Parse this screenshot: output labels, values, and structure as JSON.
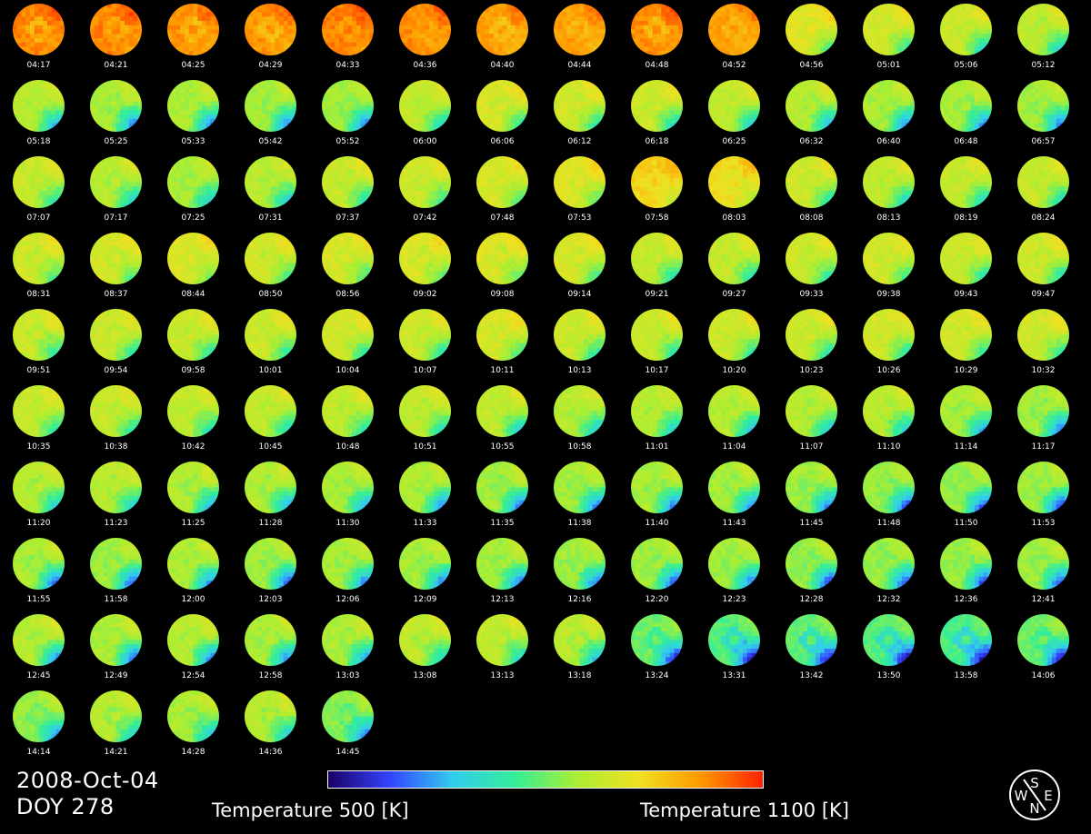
{
  "frames": [
    {
      "time": "04:17",
      "temp": 0.88,
      "cold": 0.05,
      "ring": 0.6
    },
    {
      "time": "04:21",
      "temp": 0.88,
      "cold": 0.05,
      "ring": 0.4
    },
    {
      "time": "04:25",
      "temp": 0.86,
      "cold": 0.05,
      "ring": 0.5
    },
    {
      "time": "04:29",
      "temp": 0.86,
      "cold": 0.05,
      "ring": 0.6
    },
    {
      "time": "04:33",
      "temp": 0.89,
      "cold": 0.05,
      "ring": 0.3
    },
    {
      "time": "04:36",
      "temp": 0.87,
      "cold": 0.05,
      "ring": 0.3
    },
    {
      "time": "04:40",
      "temp": 0.84,
      "cold": 0.05,
      "ring": 0.4
    },
    {
      "time": "04:44",
      "temp": 0.84,
      "cold": 0.05,
      "ring": 0.3
    },
    {
      "time": "04:48",
      "temp": 0.87,
      "cold": 0.05,
      "ring": 0.6
    },
    {
      "time": "04:52",
      "temp": 0.84,
      "cold": 0.05,
      "ring": 0.3
    },
    {
      "time": "04:56",
      "temp": 0.68,
      "cold": 0.25,
      "ring": 0.2
    },
    {
      "time": "05:01",
      "temp": 0.66,
      "cold": 0.3,
      "ring": 0.2
    },
    {
      "time": "05:06",
      "temp": 0.64,
      "cold": 0.35,
      "ring": 0.2
    },
    {
      "time": "05:12",
      "temp": 0.62,
      "cold": 0.35,
      "ring": 0.3
    },
    {
      "time": "05:18",
      "temp": 0.6,
      "cold": 0.4,
      "ring": 0.2
    },
    {
      "time": "05:25",
      "temp": 0.58,
      "cold": 0.45,
      "ring": 0.3
    },
    {
      "time": "05:33",
      "temp": 0.58,
      "cold": 0.45,
      "ring": 0.2
    },
    {
      "time": "05:42",
      "temp": 0.57,
      "cold": 0.45,
      "ring": 0.2
    },
    {
      "time": "05:52",
      "temp": 0.57,
      "cold": 0.45,
      "ring": 0.2
    },
    {
      "time": "06:00",
      "temp": 0.62,
      "cold": 0.35,
      "ring": 0.2
    },
    {
      "time": "06:06",
      "temp": 0.66,
      "cold": 0.3,
      "ring": 0.2
    },
    {
      "time": "06:12",
      "temp": 0.65,
      "cold": 0.3,
      "ring": 0.2
    },
    {
      "time": "06:18",
      "temp": 0.64,
      "cold": 0.35,
      "ring": 0.2
    },
    {
      "time": "06:25",
      "temp": 0.62,
      "cold": 0.35,
      "ring": 0.2
    },
    {
      "time": "06:32",
      "temp": 0.6,
      "cold": 0.4,
      "ring": 0.2
    },
    {
      "time": "06:40",
      "temp": 0.58,
      "cold": 0.45,
      "ring": 0.2
    },
    {
      "time": "06:48",
      "temp": 0.58,
      "cold": 0.45,
      "ring": 0.3
    },
    {
      "time": "06:57",
      "temp": 0.57,
      "cold": 0.45,
      "ring": 0.3
    },
    {
      "time": "07:07",
      "temp": 0.63,
      "cold": 0.3,
      "ring": 0.2
    },
    {
      "time": "07:17",
      "temp": 0.6,
      "cold": 0.35,
      "ring": 0.2
    },
    {
      "time": "07:25",
      "temp": 0.58,
      "cold": 0.35,
      "ring": 0.2
    },
    {
      "time": "07:31",
      "temp": 0.6,
      "cold": 0.35,
      "ring": 0.2
    },
    {
      "time": "07:37",
      "temp": 0.63,
      "cold": 0.3,
      "ring": 0.2
    },
    {
      "time": "07:42",
      "temp": 0.64,
      "cold": 0.25,
      "ring": 0.2
    },
    {
      "time": "07:48",
      "temp": 0.66,
      "cold": 0.25,
      "ring": 0.2
    },
    {
      "time": "07:53",
      "temp": 0.68,
      "cold": 0.25,
      "ring": 0.3
    },
    {
      "time": "07:58",
      "temp": 0.74,
      "cold": 0.15,
      "ring": 0.3
    },
    {
      "time": "08:03",
      "temp": 0.72,
      "cold": 0.15,
      "ring": 0.3
    },
    {
      "time": "08:08",
      "temp": 0.64,
      "cold": 0.3,
      "ring": 0.2
    },
    {
      "time": "08:13",
      "temp": 0.62,
      "cold": 0.35,
      "ring": 0.2
    },
    {
      "time": "08:19",
      "temp": 0.63,
      "cold": 0.35,
      "ring": 0.2
    },
    {
      "time": "08:24",
      "temp": 0.63,
      "cold": 0.3,
      "ring": 0.2
    },
    {
      "time": "08:31",
      "temp": 0.65,
      "cold": 0.25,
      "ring": 0.3
    },
    {
      "time": "08:37",
      "temp": 0.66,
      "cold": 0.25,
      "ring": 0.3
    },
    {
      "time": "08:44",
      "temp": 0.67,
      "cold": 0.2,
      "ring": 0.3
    },
    {
      "time": "08:50",
      "temp": 0.65,
      "cold": 0.25,
      "ring": 0.3
    },
    {
      "time": "08:56",
      "temp": 0.66,
      "cold": 0.25,
      "ring": 0.3
    },
    {
      "time": "09:02",
      "temp": 0.67,
      "cold": 0.25,
      "ring": 0.3
    },
    {
      "time": "09:08",
      "temp": 0.67,
      "cold": 0.25,
      "ring": 0.3
    },
    {
      "time": "09:14",
      "temp": 0.66,
      "cold": 0.25,
      "ring": 0.3
    },
    {
      "time": "09:21",
      "temp": 0.63,
      "cold": 0.3,
      "ring": 0.2
    },
    {
      "time": "09:27",
      "temp": 0.63,
      "cold": 0.3,
      "ring": 0.2
    },
    {
      "time": "09:33",
      "temp": 0.64,
      "cold": 0.3,
      "ring": 0.2
    },
    {
      "time": "09:38",
      "temp": 0.65,
      "cold": 0.25,
      "ring": 0.2
    },
    {
      "time": "09:43",
      "temp": 0.64,
      "cold": 0.3,
      "ring": 0.2
    },
    {
      "time": "09:47",
      "temp": 0.64,
      "cold": 0.3,
      "ring": 0.2
    },
    {
      "time": "09:51",
      "temp": 0.64,
      "cold": 0.3,
      "ring": 0.4
    },
    {
      "time": "09:54",
      "temp": 0.64,
      "cold": 0.3,
      "ring": 0.2
    },
    {
      "time": "09:58",
      "temp": 0.64,
      "cold": 0.3,
      "ring": 0.2
    },
    {
      "time": "10:01",
      "temp": 0.64,
      "cold": 0.3,
      "ring": 0.2
    },
    {
      "time": "10:04",
      "temp": 0.65,
      "cold": 0.3,
      "ring": 0.2
    },
    {
      "time": "10:07",
      "temp": 0.64,
      "cold": 0.3,
      "ring": 0.2
    },
    {
      "time": "10:11",
      "temp": 0.66,
      "cold": 0.25,
      "ring": 0.2
    },
    {
      "time": "10:13",
      "temp": 0.64,
      "cold": 0.3,
      "ring": 0.2
    },
    {
      "time": "10:17",
      "temp": 0.64,
      "cold": 0.3,
      "ring": 0.3
    },
    {
      "time": "10:20",
      "temp": 0.64,
      "cold": 0.3,
      "ring": 0.2
    },
    {
      "time": "10:23",
      "temp": 0.64,
      "cold": 0.3,
      "ring": 0.2
    },
    {
      "time": "10:26",
      "temp": 0.65,
      "cold": 0.3,
      "ring": 0.2
    },
    {
      "time": "10:29",
      "temp": 0.65,
      "cold": 0.3,
      "ring": 0.2
    },
    {
      "time": "10:32",
      "temp": 0.65,
      "cold": 0.3,
      "ring": 0.2
    },
    {
      "time": "10:35",
      "temp": 0.63,
      "cold": 0.3,
      "ring": 0.2
    },
    {
      "time": "10:38",
      "temp": 0.63,
      "cold": 0.3,
      "ring": 0.2
    },
    {
      "time": "10:42",
      "temp": 0.62,
      "cold": 0.3,
      "ring": 0.2
    },
    {
      "time": "10:45",
      "temp": 0.62,
      "cold": 0.3,
      "ring": 0.2
    },
    {
      "time": "10:48",
      "temp": 0.62,
      "cold": 0.3,
      "ring": 0.2
    },
    {
      "time": "10:51",
      "temp": 0.62,
      "cold": 0.3,
      "ring": 0.2
    },
    {
      "time": "10:55",
      "temp": 0.62,
      "cold": 0.35,
      "ring": 0.2
    },
    {
      "time": "10:58",
      "temp": 0.6,
      "cold": 0.35,
      "ring": 0.2
    },
    {
      "time": "11:01",
      "temp": 0.6,
      "cold": 0.35,
      "ring": 0.2
    },
    {
      "time": "11:04",
      "temp": 0.6,
      "cold": 0.4,
      "ring": 0.2
    },
    {
      "time": "11:07",
      "temp": 0.6,
      "cold": 0.35,
      "ring": 0.2
    },
    {
      "time": "11:10",
      "temp": 0.6,
      "cold": 0.35,
      "ring": 0.2
    },
    {
      "time": "11:14",
      "temp": 0.58,
      "cold": 0.4,
      "ring": 0.2
    },
    {
      "time": "11:17",
      "temp": 0.56,
      "cold": 0.45,
      "ring": 0.2
    },
    {
      "time": "11:20",
      "temp": 0.6,
      "cold": 0.35,
      "ring": 0.3
    },
    {
      "time": "11:23",
      "temp": 0.6,
      "cold": 0.35,
      "ring": 0.2
    },
    {
      "time": "11:25",
      "temp": 0.59,
      "cold": 0.4,
      "ring": 0.3
    },
    {
      "time": "11:28",
      "temp": 0.59,
      "cold": 0.4,
      "ring": 0.3
    },
    {
      "time": "11:30",
      "temp": 0.58,
      "cold": 0.4,
      "ring": 0.2
    },
    {
      "time": "11:33",
      "temp": 0.58,
      "cold": 0.45,
      "ring": 0.2
    },
    {
      "time": "11:35",
      "temp": 0.57,
      "cold": 0.45,
      "ring": 0.2
    },
    {
      "time": "11:38",
      "temp": 0.57,
      "cold": 0.45,
      "ring": 0.2
    },
    {
      "time": "11:40",
      "temp": 0.57,
      "cold": 0.45,
      "ring": 0.2
    },
    {
      "time": "11:43",
      "temp": 0.57,
      "cold": 0.45,
      "ring": 0.2
    },
    {
      "time": "11:45",
      "temp": 0.56,
      "cold": 0.45,
      "ring": 0.2
    },
    {
      "time": "11:48",
      "temp": 0.55,
      "cold": 0.5,
      "ring": 0.2
    },
    {
      "time": "11:50",
      "temp": 0.55,
      "cold": 0.5,
      "ring": 0.2
    },
    {
      "time": "11:53",
      "temp": 0.56,
      "cold": 0.5,
      "ring": 0.2
    },
    {
      "time": "11:55",
      "temp": 0.58,
      "cold": 0.5,
      "ring": 0.3
    },
    {
      "time": "11:58",
      "temp": 0.56,
      "cold": 0.5,
      "ring": 0.2
    },
    {
      "time": "12:00",
      "temp": 0.58,
      "cold": 0.45,
      "ring": 0.2
    },
    {
      "time": "12:03",
      "temp": 0.56,
      "cold": 0.5,
      "ring": 0.2
    },
    {
      "time": "12:06",
      "temp": 0.57,
      "cold": 0.45,
      "ring": 0.2
    },
    {
      "time": "12:09",
      "temp": 0.57,
      "cold": 0.45,
      "ring": 0.2
    },
    {
      "time": "12:13",
      "temp": 0.57,
      "cold": 0.45,
      "ring": 0.2
    },
    {
      "time": "12:16",
      "temp": 0.56,
      "cold": 0.45,
      "ring": 0.2
    },
    {
      "time": "12:20",
      "temp": 0.56,
      "cold": 0.5,
      "ring": 0.2
    },
    {
      "time": "12:23",
      "temp": 0.56,
      "cold": 0.45,
      "ring": 0.2
    },
    {
      "time": "12:28",
      "temp": 0.55,
      "cold": 0.5,
      "ring": 0.2
    },
    {
      "time": "12:32",
      "temp": 0.55,
      "cold": 0.5,
      "ring": 0.2
    },
    {
      "time": "12:36",
      "temp": 0.55,
      "cold": 0.5,
      "ring": 0.2
    },
    {
      "time": "12:41",
      "temp": 0.56,
      "cold": 0.5,
      "ring": 0.2
    },
    {
      "time": "12:45",
      "temp": 0.6,
      "cold": 0.45,
      "ring": 0.2
    },
    {
      "time": "12:49",
      "temp": 0.58,
      "cold": 0.5,
      "ring": 0.2
    },
    {
      "time": "12:54",
      "temp": 0.6,
      "cold": 0.5,
      "ring": 0.2
    },
    {
      "time": "12:58",
      "temp": 0.58,
      "cold": 0.45,
      "ring": 0.2
    },
    {
      "time": "13:03",
      "temp": 0.58,
      "cold": 0.4,
      "ring": 0.2
    },
    {
      "time": "13:08",
      "temp": 0.62,
      "cold": 0.35,
      "ring": 0.4
    },
    {
      "time": "13:13",
      "temp": 0.62,
      "cold": 0.35,
      "ring": 0.3
    },
    {
      "time": "13:18",
      "temp": 0.6,
      "cold": 0.4,
      "ring": 0.3
    },
    {
      "time": "13:24",
      "temp": 0.5,
      "cold": 0.5,
      "ring": 0.5
    },
    {
      "time": "13:31",
      "temp": 0.47,
      "cold": 0.5,
      "ring": 0.9
    },
    {
      "time": "13:42",
      "temp": 0.48,
      "cold": 0.5,
      "ring": 0.9
    },
    {
      "time": "13:50",
      "temp": 0.47,
      "cold": 0.5,
      "ring": 0.9
    },
    {
      "time": "13:58",
      "temp": 0.45,
      "cold": 0.5,
      "ring": 1.0
    },
    {
      "time": "14:06",
      "temp": 0.5,
      "cold": 0.5,
      "ring": 0.5
    },
    {
      "time": "14:14",
      "temp": 0.55,
      "cold": 0.4,
      "ring": 0.3
    },
    {
      "time": "14:21",
      "temp": 0.6,
      "cold": 0.35,
      "ring": 0.4
    },
    {
      "time": "14:28",
      "temp": 0.58,
      "cold": 0.35,
      "ring": 0.3
    },
    {
      "time": "14:36",
      "temp": 0.6,
      "cold": 0.35,
      "ring": 0.4
    },
    {
      "time": "14:45",
      "temp": 0.53,
      "cold": 0.4,
      "ring": 0.4
    }
  ],
  "date": "2008-Oct-04",
  "doy": "DOY 278",
  "colorbar": {
    "min_label": "Temperature 500 [K]",
    "max_label": "Temperature 1100 [K]",
    "min_value": 500,
    "max_value": 1100,
    "stops": [
      "#1a0066",
      "#3344ff",
      "#33ccee",
      "#33ee99",
      "#aaee33",
      "#f0e020",
      "#ff9900",
      "#ff2200"
    ]
  },
  "compass": {
    "top": "S",
    "left": "W",
    "bottom": "N",
    "right": "E"
  }
}
